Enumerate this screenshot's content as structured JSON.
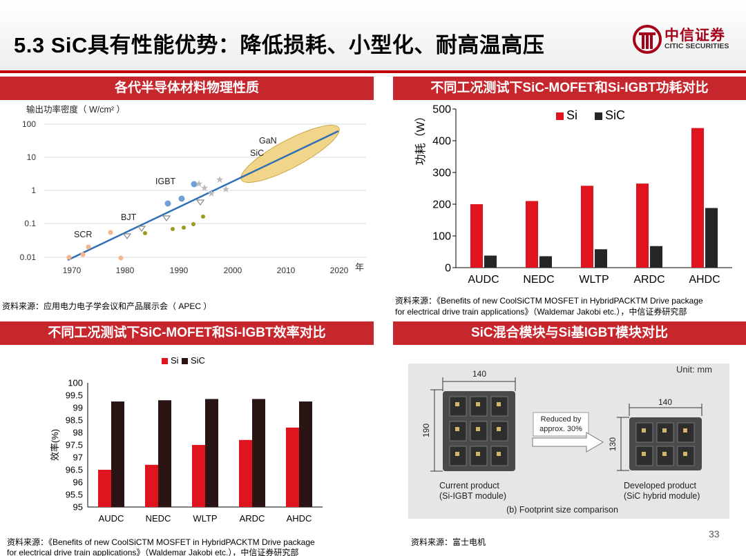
{
  "header": {
    "title": "5.3 SiC具有性能优势：降低损耗、小型化、耐高温高压",
    "logo_cn": "中信证券",
    "logo_en": "CITIC SECURITIES",
    "brand_color": "#c00000"
  },
  "panels": {
    "materials": {
      "title": "各代半导体材料物理性质",
      "source": "资料来源：应用电力电子学会议和产品展示会（ APEC ）",
      "ylabel": "输出功率密度（ W/cm² ）",
      "xunit": "年",
      "y_ticks": [
        "100",
        "10",
        "1",
        "0.1",
        "0.01"
      ],
      "x_ticks": [
        "1970",
        "1980",
        "1990",
        "2000",
        "2010",
        "2020"
      ],
      "labels": {
        "scr": "SCR",
        "bjt": "BJT",
        "igbt": "IGBT",
        "sic": "SiC",
        "gan": "GaN"
      }
    },
    "loss": {
      "title": "不同工况测试下SiC-MOFET和Si-IGBT功耗对比",
      "source_line1": "资料来源：《Benefits of new CoolSiCTM MOSFET in HybridPACKTM Drive package",
      "source_line2": "for electrical drive train applications》（Waldemar Jakobi etc.），中信证券研究部"
    },
    "efficiency": {
      "title": "不同工况测试下SiC-MOFET和Si-IGBT效率对比",
      "source_line1": "资料来源：《Benefits of new CoolSiCTM MOSFET in HybridPACKTM Drive package",
      "source_line2": "for electrical drive train applications》（Waldemar Jakobi etc.），中信证券研究部"
    },
    "module": {
      "title": "SiC混合模块与Si基IGBT模块对比",
      "source": "资料来源：富士电机",
      "unit": "Unit: mm",
      "w_current": "140",
      "h_current": "190",
      "w_developed": "140",
      "h_developed": "130",
      "reduced_1": "Reduced by",
      "reduced_2": "approx. 30%",
      "current_1": "Current product",
      "current_2": "(Si-IGBT module)",
      "developed_1": "Developed product",
      "developed_2": "(SiC hybrid module)",
      "caption": "(b) Footprint size comparison"
    }
  },
  "page_number": "33",
  "chart_data": [
    {
      "id": "loss",
      "type": "bar",
      "categories": [
        "AUDC",
        "NEDC",
        "WLTP",
        "ARDC",
        "AHDC"
      ],
      "series": [
        {
          "name": "Si",
          "color": "#e0141e",
          "values": [
            200,
            210,
            258,
            265,
            440
          ]
        },
        {
          "name": "SiC",
          "color": "#262626",
          "values": [
            38,
            36,
            58,
            68,
            188
          ]
        }
      ],
      "ylabel": "功耗（W）",
      "ylim": [
        0,
        500
      ],
      "yticks": [
        "0",
        "100",
        "200",
        "300",
        "400",
        "500"
      ],
      "legend": "top-left"
    },
    {
      "id": "efficiency",
      "type": "bar",
      "categories": [
        "AUDC",
        "NEDC",
        "WLTP",
        "ARDC",
        "AHDC"
      ],
      "series": [
        {
          "name": "Si",
          "color": "#e0141e",
          "values": [
            96.5,
            96.7,
            97.5,
            97.7,
            98.2
          ]
        },
        {
          "name": "SiC",
          "color": "#2b1414",
          "values": [
            99.25,
            99.3,
            99.35,
            99.35,
            99.25
          ]
        }
      ],
      "ylabel": "效率(%)",
      "ylim": [
        95,
        100
      ],
      "yticks": [
        "95",
        "95.5",
        "96",
        "96.5",
        "97",
        "97.5",
        "98",
        "98.5",
        "99",
        "99.5",
        "100"
      ],
      "legend": "top-center"
    },
    {
      "id": "materials",
      "type": "scatter",
      "xlabel": "年",
      "ylabel": "输出功率密度（ W/cm² ）",
      "xlim": [
        1970,
        2020
      ],
      "ylim": [
        0.01,
        100
      ],
      "log_y": true,
      "grid": true
    }
  ]
}
